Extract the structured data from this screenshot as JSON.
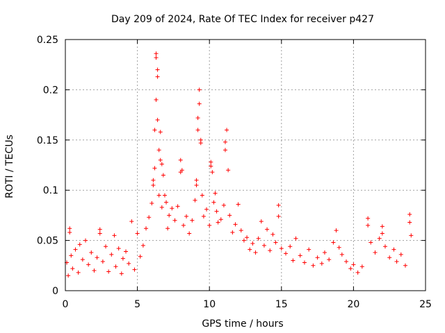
{
  "colors": {
    "series": "#ff0000",
    "grid": "#a0a0a0",
    "axis": "#000000",
    "background": "#ffffff"
  },
  "chart_data": {
    "type": "scatter",
    "marker": "plus",
    "title": "Day 209 of 2024, Rate Of TEC Index for receiver p427",
    "xlabel": "GPS time / hours",
    "ylabel": "ROTI / TECUs",
    "xlim": [
      0,
      25
    ],
    "ylim": [
      0,
      0.25
    ],
    "xticks": [
      0,
      5,
      10,
      15,
      20,
      25
    ],
    "xtick_labels": [
      "0",
      "5",
      "10",
      "15",
      "20",
      "25"
    ],
    "yticks": [
      0,
      0.05,
      0.1,
      0.15,
      0.2,
      0.25
    ],
    "ytick_labels": [
      "0",
      "0.05",
      "0.1",
      "0.15",
      "0.2",
      "0.25"
    ],
    "grid": true,
    "series": [
      {
        "name": "ROTI",
        "points": [
          [
            0.1,
            0.028
          ],
          [
            0.2,
            0.015
          ],
          [
            0.3,
            0.062
          ],
          [
            0.3,
            0.058
          ],
          [
            0.4,
            0.035
          ],
          [
            0.5,
            0.022
          ],
          [
            0.7,
            0.041
          ],
          [
            0.9,
            0.018
          ],
          [
            1.0,
            0.046
          ],
          [
            1.2,
            0.031
          ],
          [
            1.4,
            0.05
          ],
          [
            1.6,
            0.026
          ],
          [
            1.8,
            0.038
          ],
          [
            2.0,
            0.02
          ],
          [
            2.2,
            0.033
          ],
          [
            2.4,
            0.061
          ],
          [
            2.4,
            0.057
          ],
          [
            2.6,
            0.029
          ],
          [
            2.8,
            0.044
          ],
          [
            3.0,
            0.019
          ],
          [
            3.2,
            0.036
          ],
          [
            3.4,
            0.055
          ],
          [
            3.5,
            0.024
          ],
          [
            3.7,
            0.042
          ],
          [
            3.9,
            0.017
          ],
          [
            4.0,
            0.032
          ],
          [
            4.2,
            0.039
          ],
          [
            4.4,
            0.027
          ],
          [
            4.6,
            0.069
          ],
          [
            4.8,
            0.021
          ],
          [
            5.0,
            0.057
          ],
          [
            5.2,
            0.034
          ],
          [
            5.4,
            0.045
          ],
          [
            5.6,
            0.062
          ],
          [
            5.8,
            0.073
          ],
          [
            6.0,
            0.087
          ],
          [
            6.1,
            0.11
          ],
          [
            6.1,
            0.105
          ],
          [
            6.2,
            0.122
          ],
          [
            6.2,
            0.16
          ],
          [
            6.3,
            0.19
          ],
          [
            6.3,
            0.236
          ],
          [
            6.3,
            0.232
          ],
          [
            6.4,
            0.22
          ],
          [
            6.4,
            0.213
          ],
          [
            6.4,
            0.17
          ],
          [
            6.5,
            0.14
          ],
          [
            6.5,
            0.095
          ],
          [
            6.6,
            0.13
          ],
          [
            6.6,
            0.158
          ],
          [
            6.7,
            0.126
          ],
          [
            6.7,
            0.083
          ],
          [
            6.8,
            0.115
          ],
          [
            6.9,
            0.095
          ],
          [
            7.0,
            0.088
          ],
          [
            7.1,
            0.062
          ],
          [
            7.2,
            0.075
          ],
          [
            7.4,
            0.082
          ],
          [
            7.6,
            0.07
          ],
          [
            7.8,
            0.084
          ],
          [
            8.0,
            0.13
          ],
          [
            8.0,
            0.118
          ],
          [
            8.1,
            0.12
          ],
          [
            8.2,
            0.065
          ],
          [
            8.4,
            0.074
          ],
          [
            8.6,
            0.057
          ],
          [
            8.8,
            0.07
          ],
          [
            9.0,
            0.09
          ],
          [
            9.1,
            0.105
          ],
          [
            9.1,
            0.11
          ],
          [
            9.2,
            0.16
          ],
          [
            9.2,
            0.172
          ],
          [
            9.3,
            0.186
          ],
          [
            9.3,
            0.2
          ],
          [
            9.4,
            0.147
          ],
          [
            9.4,
            0.15
          ],
          [
            9.5,
            0.095
          ],
          [
            9.6,
            0.074
          ],
          [
            9.8,
            0.081
          ],
          [
            10.0,
            0.065
          ],
          [
            10.1,
            0.128
          ],
          [
            10.1,
            0.124
          ],
          [
            10.2,
            0.118
          ],
          [
            10.3,
            0.088
          ],
          [
            10.4,
            0.097
          ],
          [
            10.5,
            0.079
          ],
          [
            10.6,
            0.068
          ],
          [
            10.8,
            0.071
          ],
          [
            11.0,
            0.085
          ],
          [
            11.1,
            0.14
          ],
          [
            11.1,
            0.148
          ],
          [
            11.2,
            0.16
          ],
          [
            11.3,
            0.12
          ],
          [
            11.4,
            0.075
          ],
          [
            11.6,
            0.058
          ],
          [
            11.8,
            0.066
          ],
          [
            12.0,
            0.086
          ],
          [
            12.2,
            0.06
          ],
          [
            12.4,
            0.05
          ],
          [
            12.6,
            0.053
          ],
          [
            12.8,
            0.041
          ],
          [
            13.0,
            0.047
          ],
          [
            13.2,
            0.038
          ],
          [
            13.4,
            0.052
          ],
          [
            13.6,
            0.069
          ],
          [
            13.8,
            0.045
          ],
          [
            14.0,
            0.061
          ],
          [
            14.2,
            0.04
          ],
          [
            14.4,
            0.056
          ],
          [
            14.6,
            0.048
          ],
          [
            14.8,
            0.074
          ],
          [
            14.8,
            0.085
          ],
          [
            15.0,
            0.042
          ],
          [
            15.3,
            0.037
          ],
          [
            15.6,
            0.044
          ],
          [
            15.8,
            0.03
          ],
          [
            16.0,
            0.052
          ],
          [
            16.3,
            0.035
          ],
          [
            16.6,
            0.028
          ],
          [
            16.9,
            0.041
          ],
          [
            17.2,
            0.025
          ],
          [
            17.5,
            0.033
          ],
          [
            17.8,
            0.027
          ],
          [
            18.0,
            0.038
          ],
          [
            18.3,
            0.031
          ],
          [
            18.6,
            0.048
          ],
          [
            18.8,
            0.06
          ],
          [
            19.0,
            0.043
          ],
          [
            19.2,
            0.036
          ],
          [
            19.5,
            0.029
          ],
          [
            19.8,
            0.022
          ],
          [
            20.0,
            0.026
          ],
          [
            20.3,
            0.018
          ],
          [
            20.6,
            0.024
          ],
          [
            21.0,
            0.072
          ],
          [
            21.0,
            0.065
          ],
          [
            21.2,
            0.048
          ],
          [
            21.5,
            0.038
          ],
          [
            21.8,
            0.052
          ],
          [
            22.0,
            0.064
          ],
          [
            22.0,
            0.057
          ],
          [
            22.2,
            0.044
          ],
          [
            22.5,
            0.033
          ],
          [
            22.8,
            0.041
          ],
          [
            23.0,
            0.029
          ],
          [
            23.3,
            0.036
          ],
          [
            23.6,
            0.025
          ],
          [
            23.9,
            0.076
          ],
          [
            23.9,
            0.068
          ],
          [
            24.0,
            0.055
          ]
        ]
      }
    ]
  }
}
